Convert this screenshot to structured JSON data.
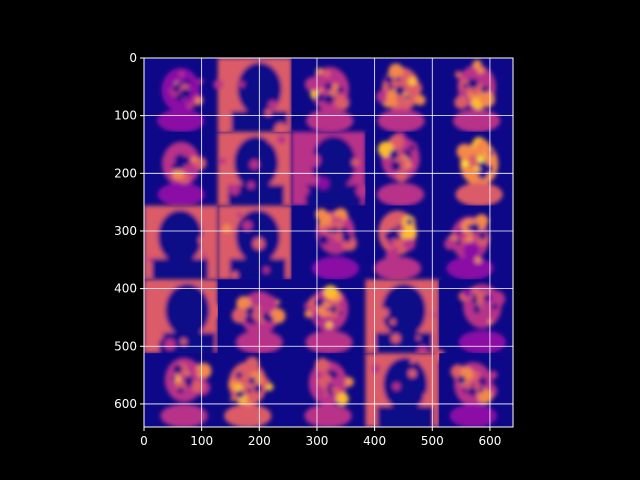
{
  "figure": {
    "background": "#000000",
    "foreground": "#ffffff"
  },
  "chart_data": {
    "type": "heatmap",
    "title": "",
    "xlabel": "",
    "ylabel": "",
    "xlim": [
      0,
      640
    ],
    "ylim": [
      640,
      0
    ],
    "y_inverted": true,
    "grid": true,
    "grid_color": "#ffffff",
    "colormap": "plasma",
    "colormap_stops": [
      "#0d0887",
      "#5302a3",
      "#8b0aa5",
      "#b83289",
      "#db5c68",
      "#f48849",
      "#febd2a",
      "#f0f921"
    ],
    "x_ticks": [
      0,
      100,
      200,
      300,
      400,
      500,
      600
    ],
    "x_tick_labels": [
      "0",
      "100",
      "200",
      "300",
      "400",
      "500",
      "600"
    ],
    "y_ticks": [
      0,
      100,
      200,
      300,
      400,
      500,
      600
    ],
    "y_tick_labels": [
      "0",
      "100",
      "200",
      "300",
      "400",
      "500",
      "600"
    ],
    "mosaic": {
      "rows": 5,
      "cols": 5,
      "tile_size": 128,
      "tiles": [
        [
          {
            "kind": "face",
            "level": 0.45
          },
          {
            "kind": "silhouette",
            "level": 0.5
          },
          {
            "kind": "face",
            "level": 0.55
          },
          {
            "kind": "face",
            "level": 0.6
          },
          {
            "kind": "face",
            "level": 0.55
          }
        ],
        [
          {
            "kind": "face",
            "level": 0.5
          },
          {
            "kind": "silhouette",
            "level": 0.5
          },
          {
            "kind": "silhouette",
            "level": 0.45
          },
          {
            "kind": "face",
            "level": 0.55
          },
          {
            "kind": "face",
            "level": 0.75
          }
        ],
        [
          {
            "kind": "silhouette",
            "level": 0.55
          },
          {
            "kind": "silhouette",
            "level": 0.55
          },
          {
            "kind": "face",
            "level": 0.5
          },
          {
            "kind": "face",
            "level": 0.6
          },
          {
            "kind": "face",
            "level": 0.5
          }
        ],
        [
          {
            "kind": "silhouette",
            "level": 0.5
          },
          {
            "kind": "face",
            "level": 0.55
          },
          {
            "kind": "face",
            "level": 0.55
          },
          {
            "kind": "silhouette",
            "level": 0.5
          },
          {
            "kind": "face",
            "level": 0.5
          }
        ],
        [
          {
            "kind": "face",
            "level": 0.55
          },
          {
            "kind": "face",
            "level": 0.65
          },
          {
            "kind": "face",
            "level": 0.55
          },
          {
            "kind": "silhouette",
            "level": 0.55
          },
          {
            "kind": "face",
            "level": 0.5
          }
        ]
      ]
    }
  }
}
